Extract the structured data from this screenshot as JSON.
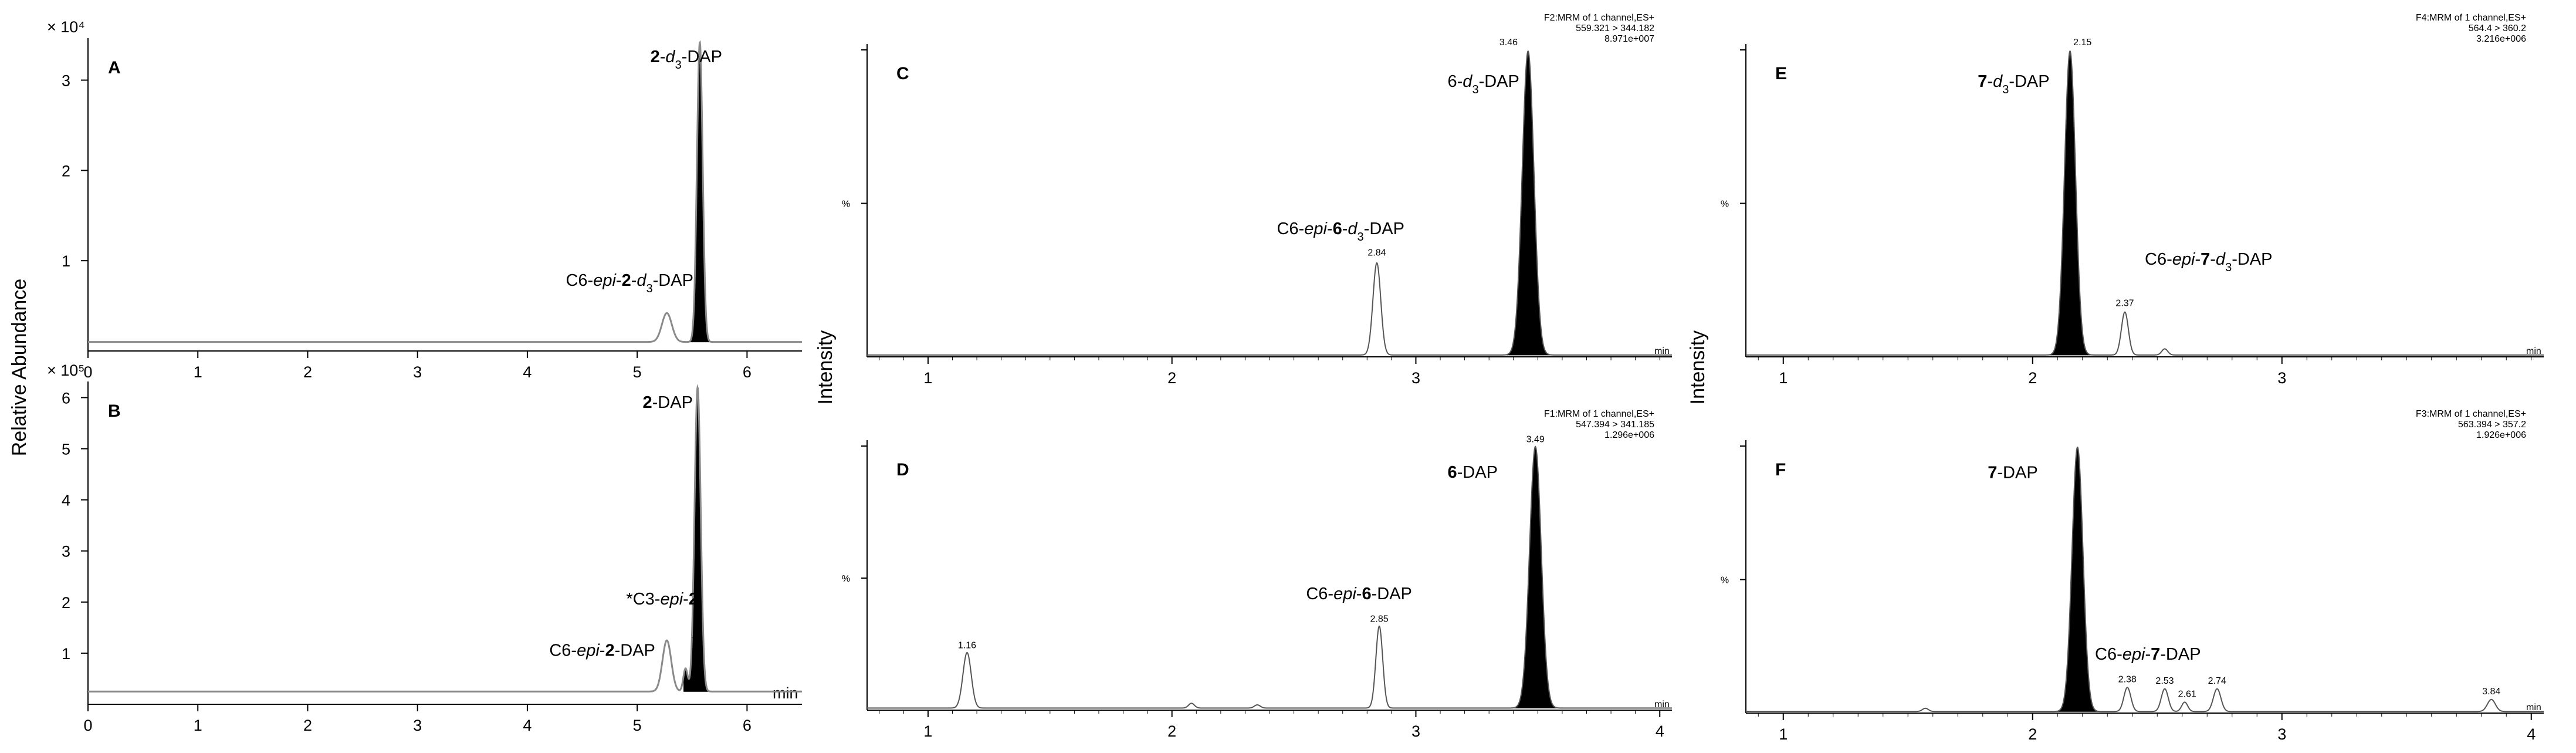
{
  "figure": {
    "left_ylabel": "Relative Abundance",
    "middle_ylabel": "Intensity",
    "right_ylabel": "Intensity"
  },
  "chart_data": [
    {
      "id": "A",
      "type": "line",
      "panel_label": "A",
      "xlim": [
        0,
        6.5
      ],
      "ylim": [
        0,
        3.4
      ],
      "xticks": [
        0,
        1,
        2,
        3,
        4,
        5,
        6
      ],
      "show_xticklabels": true,
      "yticks": [
        1,
        2,
        3
      ],
      "ylabel_multiplier": "× 10⁴",
      "x_unit": "",
      "channel": [],
      "baseline": 0.1,
      "line_color": "#8a8a8a",
      "peaks": [
        {
          "rt": 5.27,
          "height": 0.32,
          "width": 0.045,
          "fill": false
        },
        {
          "rt": 5.57,
          "height": 3.32,
          "width": 0.026,
          "fill": true
        }
      ],
      "rt_labels": [],
      "annotations": [
        {
          "parts": [
            {
              "t": "2",
              "b": true
            },
            {
              "t": "-"
            },
            {
              "t": "d",
              "i": true
            },
            {
              "t": "3",
              "sub": true
            },
            {
              "t": "-DAP"
            }
          ],
          "x": 5.12,
          "y": 3.2
        },
        {
          "parts": [
            {
              "t": "C6-"
            },
            {
              "t": "epi",
              "i": true
            },
            {
              "t": "-"
            },
            {
              "t": "2",
              "b": true
            },
            {
              "t": "-"
            },
            {
              "t": "d",
              "i": true
            },
            {
              "t": "3",
              "sub": true
            },
            {
              "t": "-DAP"
            }
          ],
          "x": 4.35,
          "y": 0.72
        }
      ]
    },
    {
      "id": "B",
      "type": "line",
      "panel_label": "B",
      "xlim": [
        0,
        6.5
      ],
      "ylim": [
        0,
        6.2
      ],
      "xticks": [
        0,
        1,
        2,
        3,
        4,
        5,
        6
      ],
      "show_xticklabels": true,
      "yticks": [
        1,
        2,
        3,
        4,
        5,
        6
      ],
      "ylabel_multiplier": "× 10⁵",
      "x_unit": "min",
      "channel": [],
      "baseline": 0.25,
      "line_color": "#8a8a8a",
      "peaks": [
        {
          "rt": 5.27,
          "height": 1.0,
          "width": 0.04,
          "fill": false
        },
        {
          "rt": 5.44,
          "height": 0.45,
          "width": 0.02,
          "fill": false
        },
        {
          "rt": 5.55,
          "height": 5.95,
          "width": 0.028,
          "fill": true
        }
      ],
      "rt_labels": [],
      "annotations": [
        {
          "parts": [
            {
              "t": "2",
              "b": true
            },
            {
              "t": "-DAP"
            }
          ],
          "x": 5.05,
          "y": 5.8
        },
        {
          "parts": [
            {
              "t": "*C3-"
            },
            {
              "t": "epi",
              "i": true
            },
            {
              "t": "-"
            },
            {
              "t": "2",
              "b": true
            }
          ],
          "x": 4.9,
          "y": 1.95
        },
        {
          "parts": [
            {
              "t": "*"
            }
          ],
          "x": 5.5,
          "y": 1.12
        },
        {
          "parts": [
            {
              "t": "C6-"
            },
            {
              "t": "epi",
              "i": true
            },
            {
              "t": "-"
            },
            {
              "t": "2",
              "b": true
            },
            {
              "t": "-DAP"
            }
          ],
          "x": 4.2,
          "y": 0.95
        }
      ]
    },
    {
      "id": "C",
      "type": "line",
      "panel_label": "C",
      "xlim": [
        0.75,
        4.05
      ],
      "ylim": [
        0,
        100
      ],
      "xticks": [
        1,
        2,
        3
      ],
      "show_xticklabels": true,
      "yticks": [
        50
      ],
      "ytick_label": "%",
      "ylabel_multiplier": "",
      "x_unit": "min",
      "channel": [
        "F2:MRM of 1 channel,ES+",
        "559.321 > 344.182",
        "8.971e+007"
      ],
      "baseline": 0.6,
      "line_color": "#555555",
      "peaks": [
        {
          "rt": 2.84,
          "height": 30,
          "width": 0.016,
          "fill": false
        },
        {
          "rt": 3.46,
          "height": 99,
          "width": 0.024,
          "fill": true
        }
      ],
      "rt_labels": [
        {
          "text": "2.84",
          "x": 2.84,
          "y": 33
        },
        {
          "text": "3.46",
          "x": 3.38,
          "y": 101.5
        }
      ],
      "annotations": [
        {
          "parts": [
            {
              "t": "6-"
            },
            {
              "t": "d",
              "i": true
            },
            {
              "t": "3",
              "sub": true
            },
            {
              "t": "-DAP"
            }
          ],
          "x": 3.13,
          "y": 88
        },
        {
          "parts": [
            {
              "t": "C6-"
            },
            {
              "t": "epi",
              "i": true
            },
            {
              "t": "-"
            },
            {
              "t": "6",
              "b": true
            },
            {
              "t": "-"
            },
            {
              "t": "d",
              "i": true
            },
            {
              "t": "3",
              "sub": true
            },
            {
              "t": "-DAP"
            }
          ],
          "x": 2.43,
          "y": 40
        }
      ]
    },
    {
      "id": "D",
      "type": "line",
      "panel_label": "D",
      "xlim": [
        0.75,
        4.05
      ],
      "ylim": [
        0,
        100
      ],
      "xticks": [
        1,
        2,
        3,
        4
      ],
      "show_xticklabels": true,
      "yticks": [
        50
      ],
      "ytick_label": "%",
      "ylabel_multiplier": "",
      "x_unit": "min",
      "channel": [
        "F1:MRM of 1 channel,ES+",
        "547.394 > 341.185",
        "1.296e+006"
      ],
      "baseline": 0.8,
      "line_color": "#555555",
      "peaks": [
        {
          "rt": 1.16,
          "height": 21,
          "width": 0.017,
          "fill": false
        },
        {
          "rt": 2.08,
          "height": 1.8,
          "width": 0.012,
          "fill": false
        },
        {
          "rt": 2.35,
          "height": 1.2,
          "width": 0.012,
          "fill": false
        },
        {
          "rt": 2.85,
          "height": 31,
          "width": 0.014,
          "fill": false
        },
        {
          "rt": 3.49,
          "height": 99,
          "width": 0.024,
          "fill": true
        }
      ],
      "rt_labels": [
        {
          "text": "1.16",
          "x": 1.16,
          "y": 23.5
        },
        {
          "text": "2.85",
          "x": 2.85,
          "y": 33.5
        },
        {
          "text": "3.49",
          "x": 3.49,
          "y": 101.5
        }
      ],
      "annotations": [
        {
          "parts": [
            {
              "t": "6",
              "b": true
            },
            {
              "t": "-DAP"
            }
          ],
          "x": 3.13,
          "y": 88
        },
        {
          "parts": [
            {
              "t": "C6-"
            },
            {
              "t": "epi",
              "i": true
            },
            {
              "t": "-"
            },
            {
              "t": "6",
              "b": true
            },
            {
              "t": "-DAP"
            }
          ],
          "x": 2.55,
          "y": 42
        }
      ]
    },
    {
      "id": "E",
      "type": "line",
      "panel_label": "E",
      "xlim": [
        0.85,
        4.05
      ],
      "ylim": [
        0,
        100
      ],
      "xticks": [
        1,
        2,
        3
      ],
      "show_xticklabels": true,
      "yticks": [
        50
      ],
      "ytick_label": "%",
      "ylabel_multiplier": "",
      "x_unit": "min",
      "channel": [
        "F4:MRM of 1 channel,ES+",
        "564.4 > 360.2",
        "3.216e+006"
      ],
      "baseline": 0.6,
      "line_color": "#555555",
      "peaks": [
        {
          "rt": 2.15,
          "height": 99,
          "width": 0.022,
          "fill": true
        },
        {
          "rt": 2.37,
          "height": 14,
          "width": 0.014,
          "fill": false
        },
        {
          "rt": 2.53,
          "height": 2,
          "width": 0.012,
          "fill": false
        }
      ],
      "rt_labels": [
        {
          "text": "2.15",
          "x": 2.2,
          "y": 101.5
        },
        {
          "text": "2.37",
          "x": 2.37,
          "y": 16.5
        }
      ],
      "annotations": [
        {
          "parts": [
            {
              "t": "7",
              "b": true
            },
            {
              "t": "-"
            },
            {
              "t": "d",
              "i": true
            },
            {
              "t": "3",
              "sub": true
            },
            {
              "t": "-DAP"
            }
          ],
          "x": 1.78,
          "y": 88
        },
        {
          "parts": [
            {
              "t": "C6-"
            },
            {
              "t": "epi",
              "i": true
            },
            {
              "t": "-"
            },
            {
              "t": "7",
              "b": true
            },
            {
              "t": "-"
            },
            {
              "t": "d",
              "i": true
            },
            {
              "t": "3",
              "sub": true
            },
            {
              "t": "-DAP"
            }
          ],
          "x": 2.45,
          "y": 30
        }
      ]
    },
    {
      "id": "F",
      "type": "line",
      "panel_label": "F",
      "xlim": [
        0.85,
        4.05
      ],
      "ylim": [
        0,
        100
      ],
      "xticks": [
        1,
        2,
        3,
        4
      ],
      "show_xticklabels": true,
      "yticks": [
        50
      ],
      "ytick_label": "%",
      "ylabel_multiplier": "",
      "x_unit": "min",
      "channel": [
        "F3:MRM of 1 channel,ES+",
        "563.394 > 357.2",
        "1.926e+006"
      ],
      "baseline": 0.6,
      "line_color": "#555555",
      "peaks": [
        {
          "rt": 1.57,
          "height": 1.2,
          "width": 0.012,
          "fill": false
        },
        {
          "rt": 2.18,
          "height": 99,
          "width": 0.022,
          "fill": true
        },
        {
          "rt": 2.38,
          "height": 9,
          "width": 0.014,
          "fill": false
        },
        {
          "rt": 2.53,
          "height": 8.5,
          "width": 0.014,
          "fill": false
        },
        {
          "rt": 2.61,
          "height": 3.5,
          "width": 0.012,
          "fill": false
        },
        {
          "rt": 2.74,
          "height": 8.5,
          "width": 0.015,
          "fill": false
        },
        {
          "rt": 3.84,
          "height": 4.5,
          "width": 0.016,
          "fill": false
        }
      ],
      "rt_labels": [
        {
          "text": "2.38",
          "x": 2.38,
          "y": 11.5
        },
        {
          "text": "2.53",
          "x": 2.53,
          "y": 11
        },
        {
          "text": "2.61",
          "x": 2.62,
          "y": 6
        },
        {
          "text": "2.74",
          "x": 2.74,
          "y": 11
        },
        {
          "text": "3.84",
          "x": 3.84,
          "y": 7
        }
      ],
      "annotations": [
        {
          "parts": [
            {
              "t": "7",
              "b": true
            },
            {
              "t": "-DAP"
            }
          ],
          "x": 1.82,
          "y": 88
        },
        {
          "parts": [
            {
              "t": "C6-"
            },
            {
              "t": "epi",
              "i": true
            },
            {
              "t": "-"
            },
            {
              "t": "7",
              "b": true
            },
            {
              "t": "-DAP"
            }
          ],
          "x": 2.25,
          "y": 20
        }
      ]
    }
  ]
}
